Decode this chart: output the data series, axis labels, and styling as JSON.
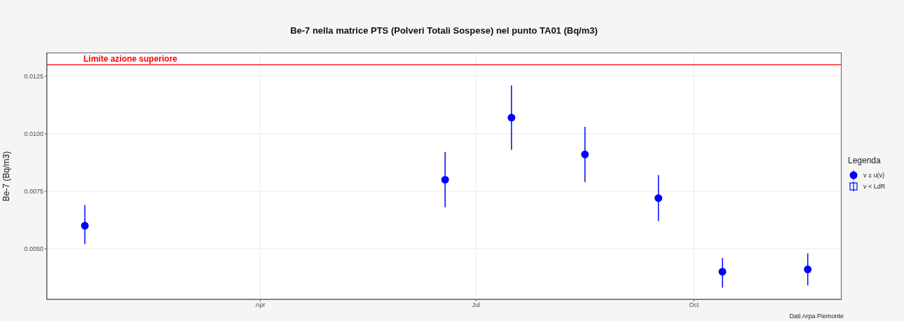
{
  "chart_data": {
    "type": "scatter",
    "title": "Be-7 nella matrice PTS (Polveri Totali Sospese) nel punto TA01 (Bq/m3)",
    "ylabel": "Be-7 (Bq/m3)",
    "legend_title": "Legenda",
    "annotations": [
      "Dati Arpa Piemonte"
    ],
    "x": [
      "--01-17",
      "--06-18",
      "--07-16",
      "--08-16",
      "--09-16",
      "--10-13",
      "--11-18"
    ],
    "series": [
      {
        "name": "v ± u(v)",
        "color": "#0000ff",
        "marker": "circle",
        "values": [
          0.006,
          0.008,
          0.0107,
          0.0091,
          0.0072,
          0.004,
          0.0041
        ],
        "errors": [
          [
            0.0052,
            0.0069
          ],
          [
            0.0068,
            0.0092
          ],
          [
            0.0093,
            0.0121
          ],
          [
            0.0079,
            0.0103
          ],
          [
            0.0062,
            0.0082
          ],
          [
            0.0033,
            0.0046
          ],
          [
            0.0034,
            0.0048
          ]
        ]
      },
      {
        "name": "v < LdR",
        "color": "#0000ff",
        "marker": "square",
        "values": [
          null,
          null,
          null,
          null,
          null,
          null,
          null
        ]
      }
    ],
    "xlim": [
      "--01-01",
      "--12-02"
    ],
    "xticks": [
      {
        "value": "--04-01",
        "label": "Apr"
      },
      {
        "value": "--07-01",
        "label": "Jul"
      },
      {
        "value": "--10-01",
        "label": "Oct"
      }
    ],
    "ylim": [
      0.0028,
      0.0135
    ],
    "yticks": [
      {
        "value": 0.005,
        "label": "0.0050"
      },
      {
        "value": 0.0075,
        "label": "0.0075"
      },
      {
        "value": 0.01,
        "label": "0.0100"
      },
      {
        "value": 0.0125,
        "label": "0.0125"
      }
    ],
    "ref_lines": [
      {
        "axis": "y",
        "value": 0.013,
        "label": "Limite azione superiore",
        "color": "#ff0000"
      }
    ],
    "grid": true,
    "legend": "right"
  }
}
